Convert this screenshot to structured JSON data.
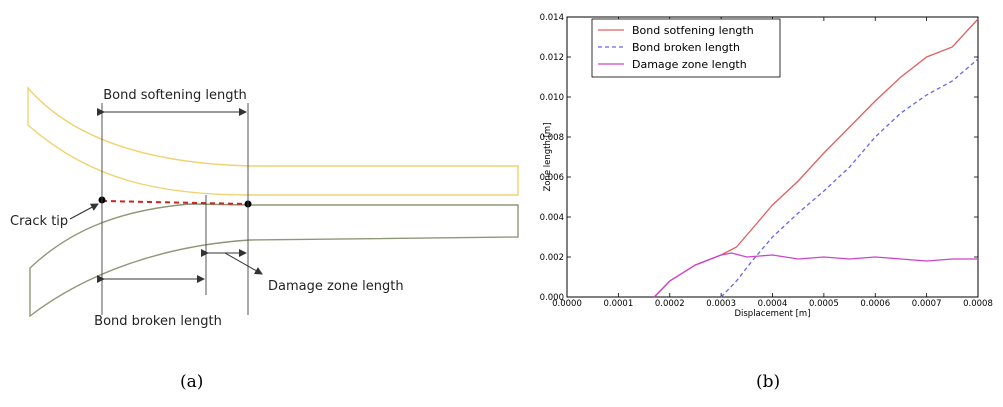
{
  "schematic": {
    "labels": {
      "bond_softening": "Bond softening length",
      "crack_tip": "Crack tip",
      "damage_zone": "Damage zone length",
      "bond_broken": "Bond broken length"
    },
    "colors": {
      "upper_beam": "#f0d270",
      "lower_beam": "#8e9878",
      "crack_path": "#cc2222",
      "dimension": "#333333"
    }
  },
  "captions": {
    "a": "(a)",
    "b": "(b)"
  },
  "chart_data": {
    "type": "line",
    "title": "",
    "xlabel": "Displacement [m]",
    "ylabel": "Zone length [m]",
    "xlim": [
      0.0,
      0.0008
    ],
    "ylim": [
      0.0,
      0.014
    ],
    "xticks": [
      "0.0000",
      "0.0001",
      "0.0002",
      "0.0003",
      "0.0004",
      "0.0005",
      "0.0006",
      "0.0007",
      "0.0008"
    ],
    "yticks": [
      "0.000",
      "0.002",
      "0.004",
      "0.006",
      "0.008",
      "0.010",
      "0.012",
      "0.014"
    ],
    "grid": false,
    "legend_position": "top-left",
    "series": [
      {
        "name": "Bond sotfening length",
        "color": "#e06060",
        "dash": "solid",
        "x": [
          0.00017,
          0.0002,
          0.00025,
          0.0003,
          0.00033,
          0.00036,
          0.0004,
          0.00045,
          0.0005,
          0.00055,
          0.0006,
          0.00065,
          0.0007,
          0.00075,
          0.0008
        ],
        "y": [
          0.0,
          0.0008,
          0.0016,
          0.0021,
          0.0025,
          0.0034,
          0.0046,
          0.0058,
          0.0072,
          0.0085,
          0.0098,
          0.011,
          0.012,
          0.0125,
          0.0139
        ]
      },
      {
        "name": "Bond broken length",
        "color": "#6666ee",
        "dash": "dashed",
        "x": [
          0.0003,
          0.00033,
          0.00036,
          0.0004,
          0.00045,
          0.0005,
          0.00055,
          0.0006,
          0.00065,
          0.0007,
          0.00075,
          0.0008
        ],
        "y": [
          0.0,
          0.0008,
          0.0018,
          0.003,
          0.0042,
          0.0053,
          0.0065,
          0.008,
          0.0092,
          0.0101,
          0.0108,
          0.0119
        ]
      },
      {
        "name": "Damage zone length",
        "color": "#cc44cc",
        "dash": "solid",
        "x": [
          0.00017,
          0.0002,
          0.00025,
          0.0003,
          0.00032,
          0.00035,
          0.0004,
          0.00045,
          0.0005,
          0.00055,
          0.0006,
          0.00065,
          0.0007,
          0.00075,
          0.0008
        ],
        "y": [
          0.0,
          0.0008,
          0.0016,
          0.0021,
          0.0022,
          0.002,
          0.0021,
          0.0019,
          0.002,
          0.0019,
          0.002,
          0.0019,
          0.0018,
          0.0019,
          0.0019
        ]
      }
    ]
  }
}
